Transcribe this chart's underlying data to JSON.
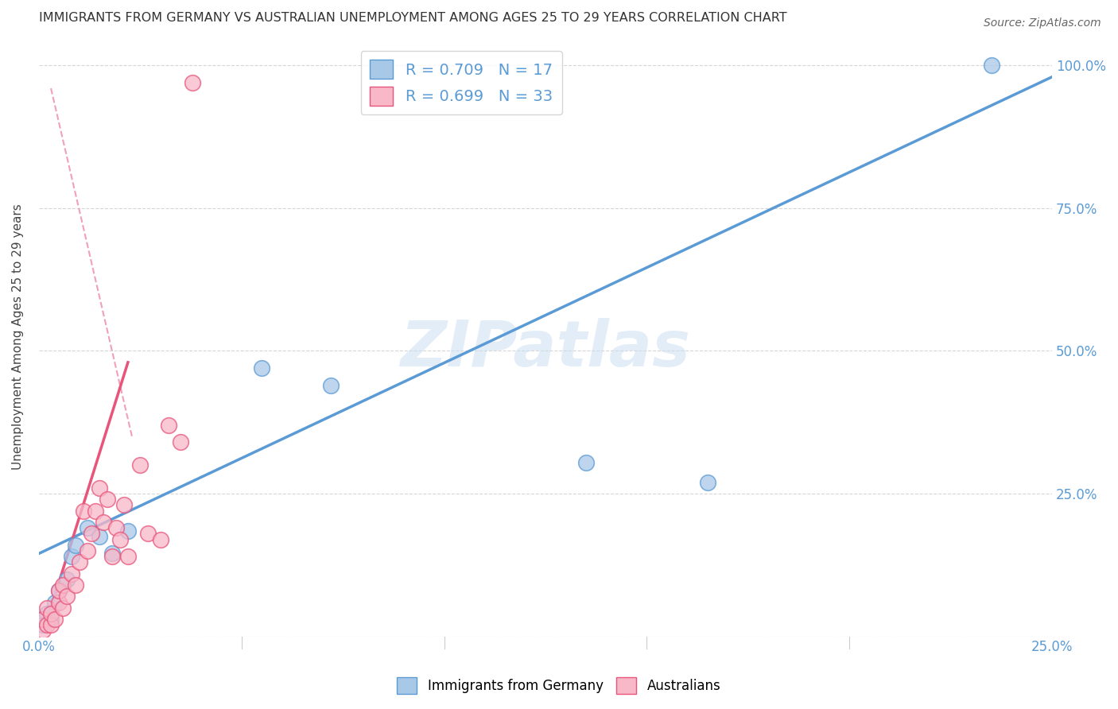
{
  "title": "IMMIGRANTS FROM GERMANY VS AUSTRALIAN UNEMPLOYMENT AMONG AGES 25 TO 29 YEARS CORRELATION CHART",
  "source": "Source: ZipAtlas.com",
  "ylabel": "Unemployment Among Ages 25 to 29 years",
  "watermark": "ZIPatlas",
  "xlim": [
    0.0,
    0.25
  ],
  "ylim": [
    0.0,
    1.05
  ],
  "x_ticks": [
    0.0,
    0.05,
    0.1,
    0.15,
    0.2,
    0.25
  ],
  "x_tick_labels": [
    "0.0%",
    "",
    "",
    "",
    "",
    "25.0%"
  ],
  "y_ticks_right": [
    0.0,
    0.25,
    0.5,
    0.75,
    1.0
  ],
  "y_tick_labels_right": [
    "",
    "25.0%",
    "50.0%",
    "75.0%",
    "100.0%"
  ],
  "legend_r1": "R = 0.709",
  "legend_n1": "N = 17",
  "legend_r2": "R = 0.699",
  "legend_n2": "N = 33",
  "blue_color": "#a8c8e8",
  "pink_color": "#f8b8c8",
  "blue_line_color": "#5b9bd5",
  "pink_line_color": "#e8547a",
  "pink_dash_color": "#f0a0b8",
  "grid_color": "#cccccc",
  "title_color": "#333333",
  "label_color": "#5b9bd5",
  "germany_points_x": [
    0.001,
    0.002,
    0.003,
    0.004,
    0.005,
    0.007,
    0.008,
    0.009,
    0.012,
    0.015,
    0.018,
    0.022,
    0.055,
    0.072,
    0.135,
    0.165,
    0.235
  ],
  "germany_points_y": [
    0.02,
    0.04,
    0.03,
    0.06,
    0.08,
    0.1,
    0.14,
    0.16,
    0.19,
    0.175,
    0.145,
    0.185,
    0.47,
    0.44,
    0.305,
    0.27,
    1.0
  ],
  "australia_points_x": [
    0.001,
    0.001,
    0.002,
    0.002,
    0.003,
    0.003,
    0.004,
    0.005,
    0.005,
    0.006,
    0.006,
    0.007,
    0.008,
    0.009,
    0.01,
    0.011,
    0.012,
    0.013,
    0.014,
    0.015,
    0.016,
    0.017,
    0.018,
    0.019,
    0.02,
    0.021,
    0.022,
    0.025,
    0.027,
    0.03,
    0.032,
    0.035,
    0.038
  ],
  "australia_points_y": [
    0.01,
    0.03,
    0.02,
    0.05,
    0.02,
    0.04,
    0.03,
    0.06,
    0.08,
    0.05,
    0.09,
    0.07,
    0.11,
    0.09,
    0.13,
    0.22,
    0.15,
    0.18,
    0.22,
    0.26,
    0.2,
    0.24,
    0.14,
    0.19,
    0.17,
    0.23,
    0.14,
    0.3,
    0.18,
    0.17,
    0.37,
    0.34,
    0.97
  ],
  "blue_regline_x": [
    0.0,
    0.25
  ],
  "blue_regline_y": [
    0.145,
    0.98
  ],
  "pink_regline_x": [
    0.003,
    0.022
  ],
  "pink_regline_y": [
    0.05,
    0.48
  ],
  "pink_dashline_x": [
    0.003,
    0.023
  ],
  "pink_dashline_y": [
    0.96,
    0.35
  ]
}
